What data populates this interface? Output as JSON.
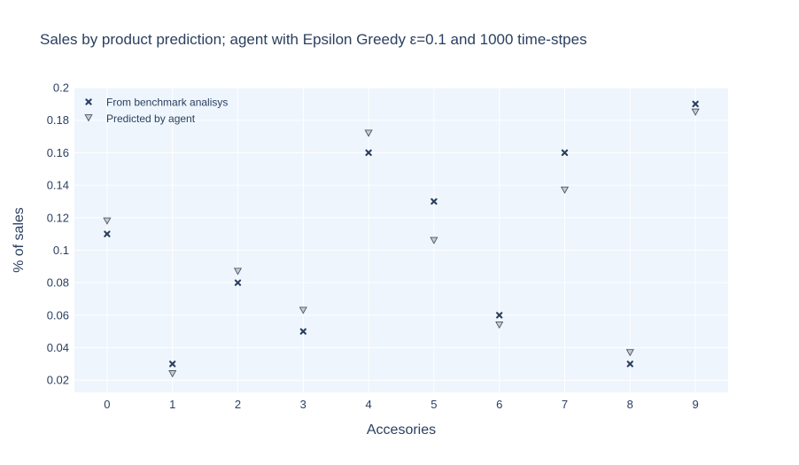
{
  "chart_data": {
    "type": "scatter",
    "title": "Sales by product prediction; agent with Epsilon Greedy  ε=0.1 and 1000 time-stpes",
    "xlabel": "Accesories",
    "ylabel": "% of sales",
    "x": [
      0,
      1,
      2,
      3,
      4,
      5,
      6,
      7,
      8,
      9
    ],
    "x_tick_labels": [
      "0",
      "1",
      "2",
      "3",
      "4",
      "5",
      "6",
      "7",
      "8",
      "9"
    ],
    "xlim": [
      -0.5,
      9.5
    ],
    "ylim": [
      0.0125,
      0.2
    ],
    "y_ticks": [
      0.02,
      0.04,
      0.06,
      0.08,
      0.1,
      0.12,
      0.14,
      0.16,
      0.18,
      0.2
    ],
    "y_tick_labels": [
      "0.02",
      "0.04",
      "0.06",
      "0.08",
      "0.1",
      "0.12",
      "0.14",
      "0.16",
      "0.18",
      "0.2"
    ],
    "grid": true,
    "legend_position": "top-left",
    "series": [
      {
        "name": "From benchmark analisys",
        "marker": "x",
        "values": [
          0.11,
          0.03,
          0.08,
          0.05,
          0.16,
          0.13,
          0.06,
          0.16,
          0.03,
          0.19
        ]
      },
      {
        "name": "Predicted by agent",
        "marker": "triangle-down",
        "values": [
          0.118,
          0.024,
          0.087,
          0.063,
          0.172,
          0.106,
          0.054,
          0.137,
          0.037,
          0.185
        ]
      }
    ],
    "colors": {
      "plot_background": "#eef5fd",
      "grid": "#ffffff",
      "x_marker": "#2a3f5f",
      "triangle_fill": "#c8ccd2",
      "triangle_stroke": "#4a5565",
      "text": "#2a3f5f"
    }
  }
}
